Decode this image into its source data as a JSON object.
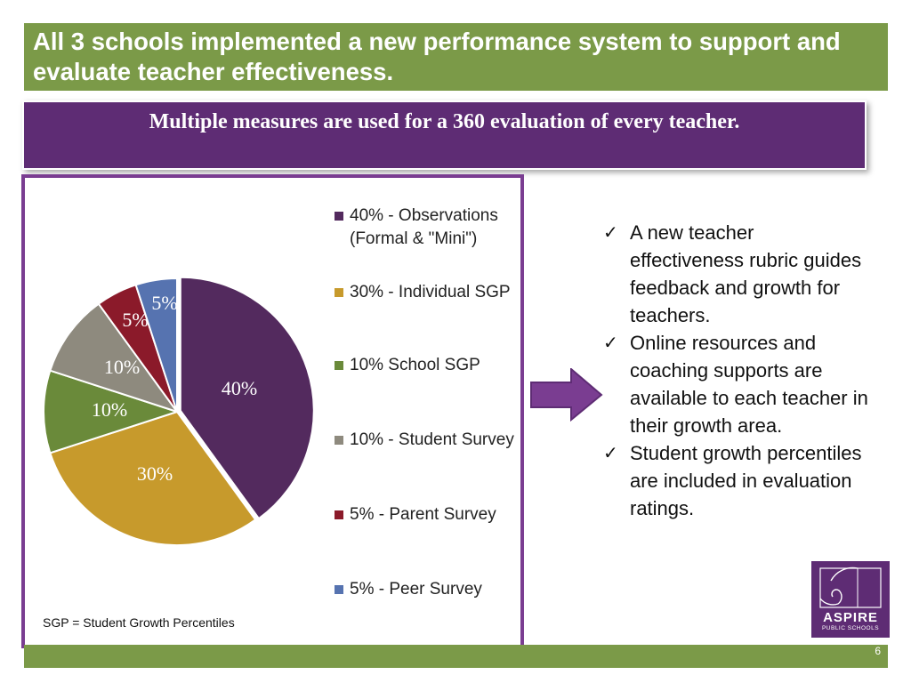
{
  "slide": {
    "title": "All 3 schools implemented a new performance system to support and evaluate teacher effectiveness.",
    "subtitle": "Multiple measures are  used for a 360 evaluation of every teacher.",
    "page_number": "6"
  },
  "chart_data": {
    "type": "pie",
    "slices": [
      {
        "label": "40%",
        "value": 40,
        "color": "#532a5e"
      },
      {
        "label": "30%",
        "value": 30,
        "color": "#c79a2c"
      },
      {
        "label": "10%",
        "value": 10,
        "color": "#6a8a3a"
      },
      {
        "label": "10%",
        "value": 10,
        "color": "#8e8a7e"
      },
      {
        "label": "5%",
        "value": 5,
        "color": "#8b1a2a"
      },
      {
        "label": "5%",
        "value": 5,
        "color": "#5673b0"
      }
    ],
    "legend": [
      {
        "text": "40% - Observations (Formal & \"Mini\")",
        "color": "#532a5e"
      },
      {
        "text": "30% - Individual SGP",
        "color": "#c79a2c"
      },
      {
        "text": "10% School SGP",
        "color": "#6a8a3a"
      },
      {
        "text": "10% - Student Survey",
        "color": "#8e8a7e"
      },
      {
        "text": "5% - Parent Survey",
        "color": "#8b1a2a"
      },
      {
        "text": "5% - Peer Survey",
        "color": "#5673b0"
      }
    ],
    "legend_position": "right",
    "footnote": "SGP = Student Growth Percentiles"
  },
  "bullets": [
    "A new teacher effectiveness rubric guides feedback and growth for teachers.",
    "Online resources and coaching supports are available to each teacher in their growth area.",
    "Student growth percentiles are included in evaluation ratings."
  ],
  "logo": {
    "name": "ASPIRE",
    "sub": "PUBLIC SCHOOLS",
    "icon": "spiral-icon"
  }
}
